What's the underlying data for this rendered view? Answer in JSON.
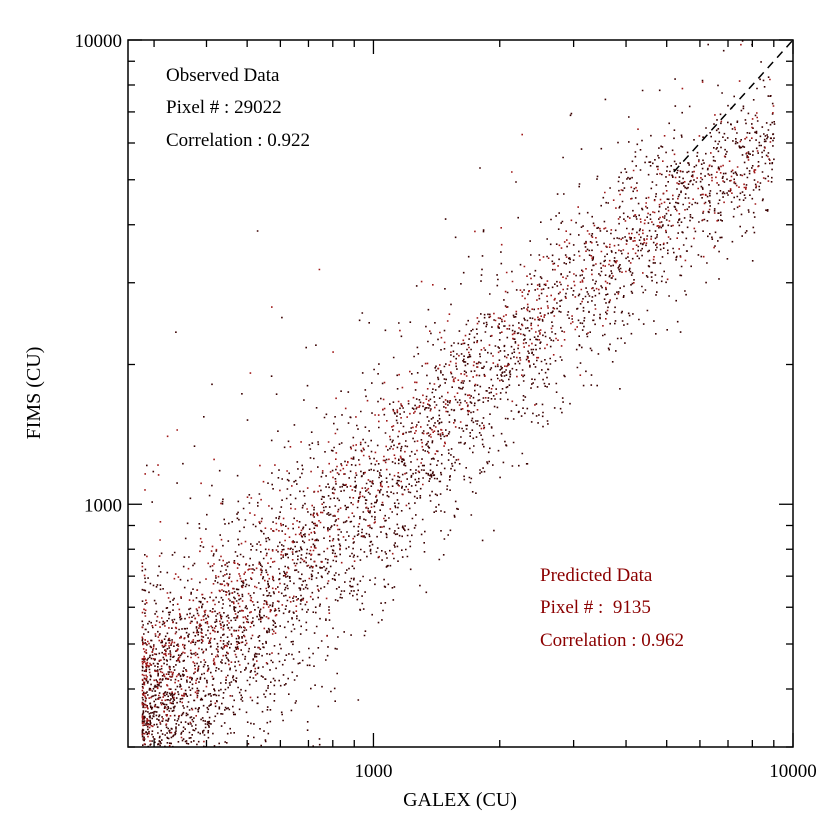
{
  "chart_data": {
    "type": "scatter",
    "xlabel": "GALEX (CU)",
    "ylabel": "FIMS (CU)",
    "x_scale": "log",
    "y_scale": "log",
    "xlim": [
      260,
      10000
    ],
    "ylim": [
      300,
      10000
    ],
    "x_tick_labels": [
      {
        "value": 1000,
        "label": "1000"
      },
      {
        "value": 10000,
        "label": "10000"
      }
    ],
    "y_tick_labels": [
      {
        "value": 1000,
        "label": "1000"
      },
      {
        "value": 10000,
        "label": "10000"
      }
    ],
    "reference_line": {
      "style": "dashed",
      "color": "#000000",
      "from": [
        5200,
        5200
      ],
      "to": [
        10000,
        10000
      ]
    },
    "grid": false,
    "annotations": [
      {
        "name": "observed",
        "color": "#000000",
        "lines": [
          "Observed Data",
          "Pixel # : 29022",
          "Correlation : 0.922"
        ]
      },
      {
        "name": "predicted",
        "color": "#8b0000",
        "lines": [
          "Predicted Data",
          "Pixel # :  9135",
          "Correlation : 0.962"
        ]
      }
    ],
    "series": [
      {
        "color": "#3a0000",
        "point_count": 29022,
        "correlation": 0.922,
        "trend_x": [
          300,
          500,
          1000,
          2000,
          4000,
          8000
        ],
        "trend_y": [
          330,
          540,
          1000,
          1900,
          3650,
          5700
        ],
        "log_scatter": 0.11
      },
      {
        "color": "#a01818",
        "point_count": 9135,
        "correlation": 0.962,
        "trend_x": [
          300,
          500,
          1000,
          2000,
          4000,
          7000
        ],
        "trend_y": [
          430,
          640,
          1200,
          2200,
          3700,
          5200
        ],
        "log_scatter": 0.07
      }
    ]
  }
}
